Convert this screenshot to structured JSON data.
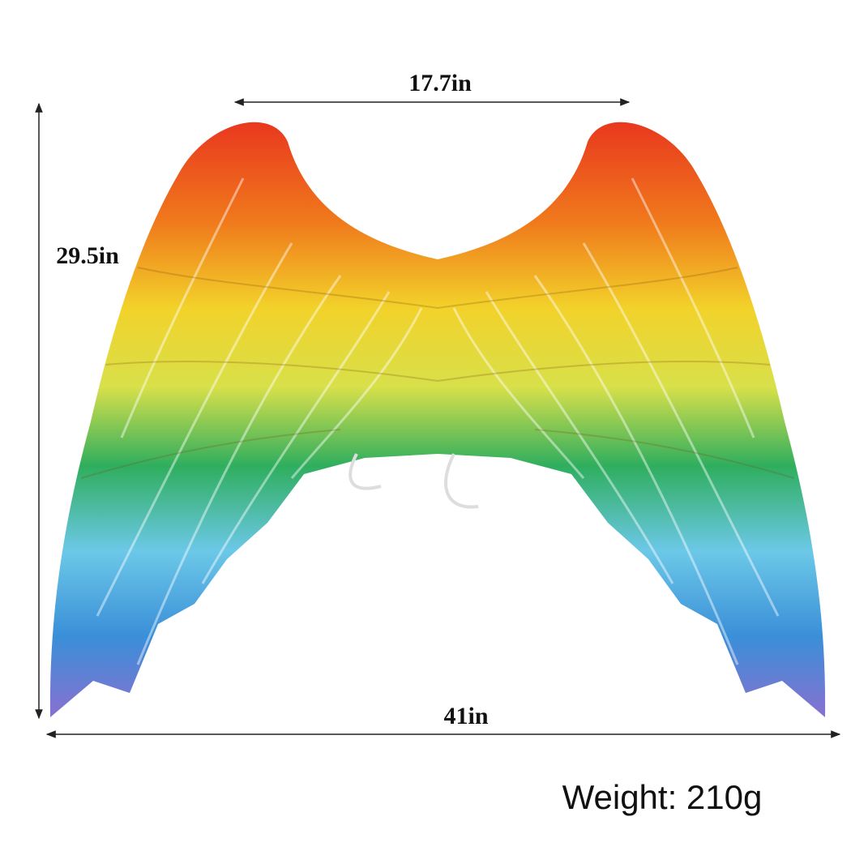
{
  "dimensions": {
    "top_width": "17.7in",
    "height": "29.5in",
    "bottom_width": "41in"
  },
  "weight": "Weight: 210g"
}
